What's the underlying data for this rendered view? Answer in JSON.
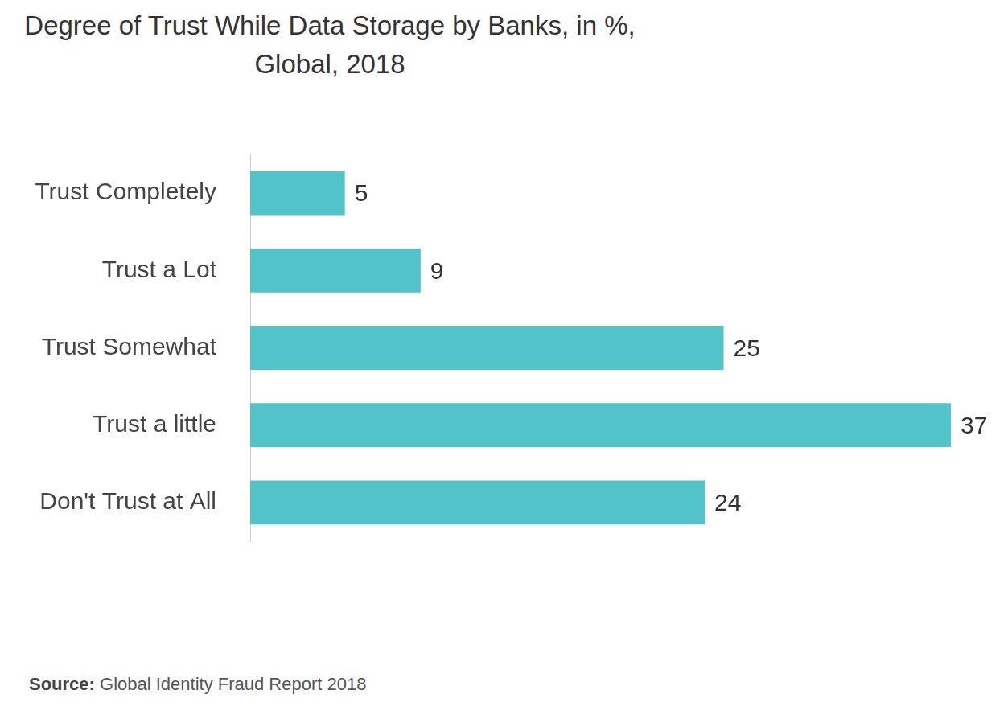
{
  "chart_data": {
    "type": "bar",
    "orientation": "horizontal",
    "title": [
      "Degree of Trust While Data Storage by Banks, in %,",
      "Global, 2018"
    ],
    "categories": [
      "Trust Completely",
      "Trust a Lot",
      "Trust Somewhat",
      "Trust a little",
      "Don't Trust at All"
    ],
    "values": [
      5,
      9,
      25,
      37,
      24
    ],
    "color": "#52c4c9",
    "xlim": [
      0,
      37
    ],
    "grid": false,
    "data_labels": true,
    "tick_labels": "y",
    "source_label": "Source:",
    "source": "Global Identity Fraud Report 2018"
  }
}
